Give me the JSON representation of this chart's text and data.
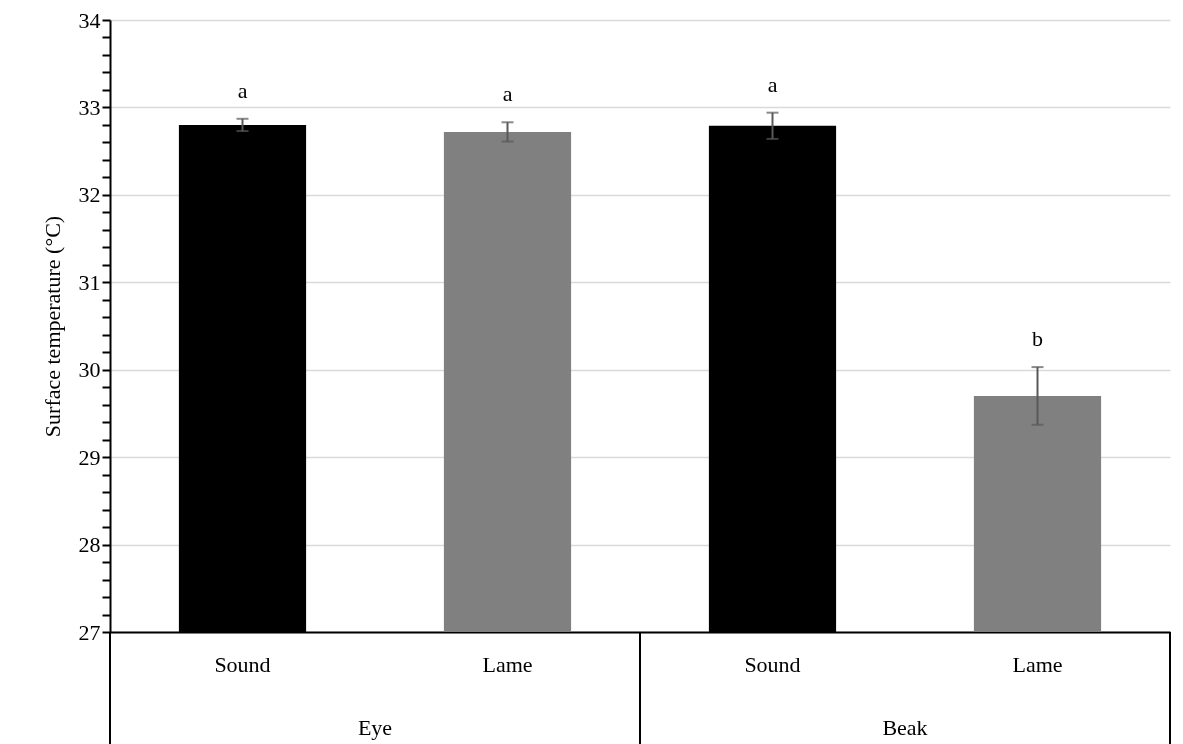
{
  "chart_data": {
    "type": "bar",
    "ylabel": "Surface temperature (°C)",
    "categories": [
      "Sound",
      "Lame",
      "Sound",
      "Lame"
    ],
    "values": [
      32.8,
      32.72,
      32.79,
      29.7
    ],
    "errors": [
      0.07,
      0.11,
      0.15,
      0.33
    ],
    "colors": [
      "#000000",
      "#808080",
      "#000000",
      "#808080"
    ],
    "ylim": [
      27,
      34
    ],
    "yticks": [
      27,
      {
        "value": 27.2,
        "label": null
      },
      {
        "value": 27.4,
        "label": null
      },
      {
        "value": 27.6,
        "label": null
      },
      {
        "value": 27.8,
        "label": null
      },
      28,
      {
        "value": 28.2,
        "label": null
      },
      {
        "value": 28.4,
        "label": null
      },
      {
        "value": 28.6,
        "label": null
      },
      {
        "value": 28.8,
        "label": null
      },
      29,
      {
        "value": 29.2,
        "label": null
      },
      {
        "value": 29.4,
        "label": null
      },
      {
        "value": 29.6,
        "label": null
      },
      {
        "value": 29.8,
        "label": null
      },
      30,
      {
        "value": 30.2,
        "label": null
      },
      {
        "value": 30.4,
        "label": null
      },
      {
        "value": 30.6,
        "label": null
      },
      {
        "value": 30.8,
        "label": null
      },
      31,
      {
        "value": 31.2,
        "label": null
      },
      {
        "value": 31.4,
        "label": null
      },
      {
        "value": 31.6,
        "label": null
      },
      {
        "value": 31.8,
        "label": null
      },
      32,
      {
        "value": 32.2,
        "label": null
      },
      {
        "value": 32.4,
        "label": null
      },
      {
        "value": 32.6,
        "label": null
      },
      {
        "value": 32.8,
        "label": null
      },
      33,
      {
        "value": 33.2,
        "label": null
      },
      {
        "value": 33.4,
        "label": null
      },
      {
        "value": 33.6,
        "label": null
      },
      {
        "value": 33.8,
        "label": null
      },
      34
    ],
    "grid": "y",
    "annotations": [
      "a",
      "a",
      "a",
      "b",
      "Eye",
      "Beak"
    ]
  }
}
